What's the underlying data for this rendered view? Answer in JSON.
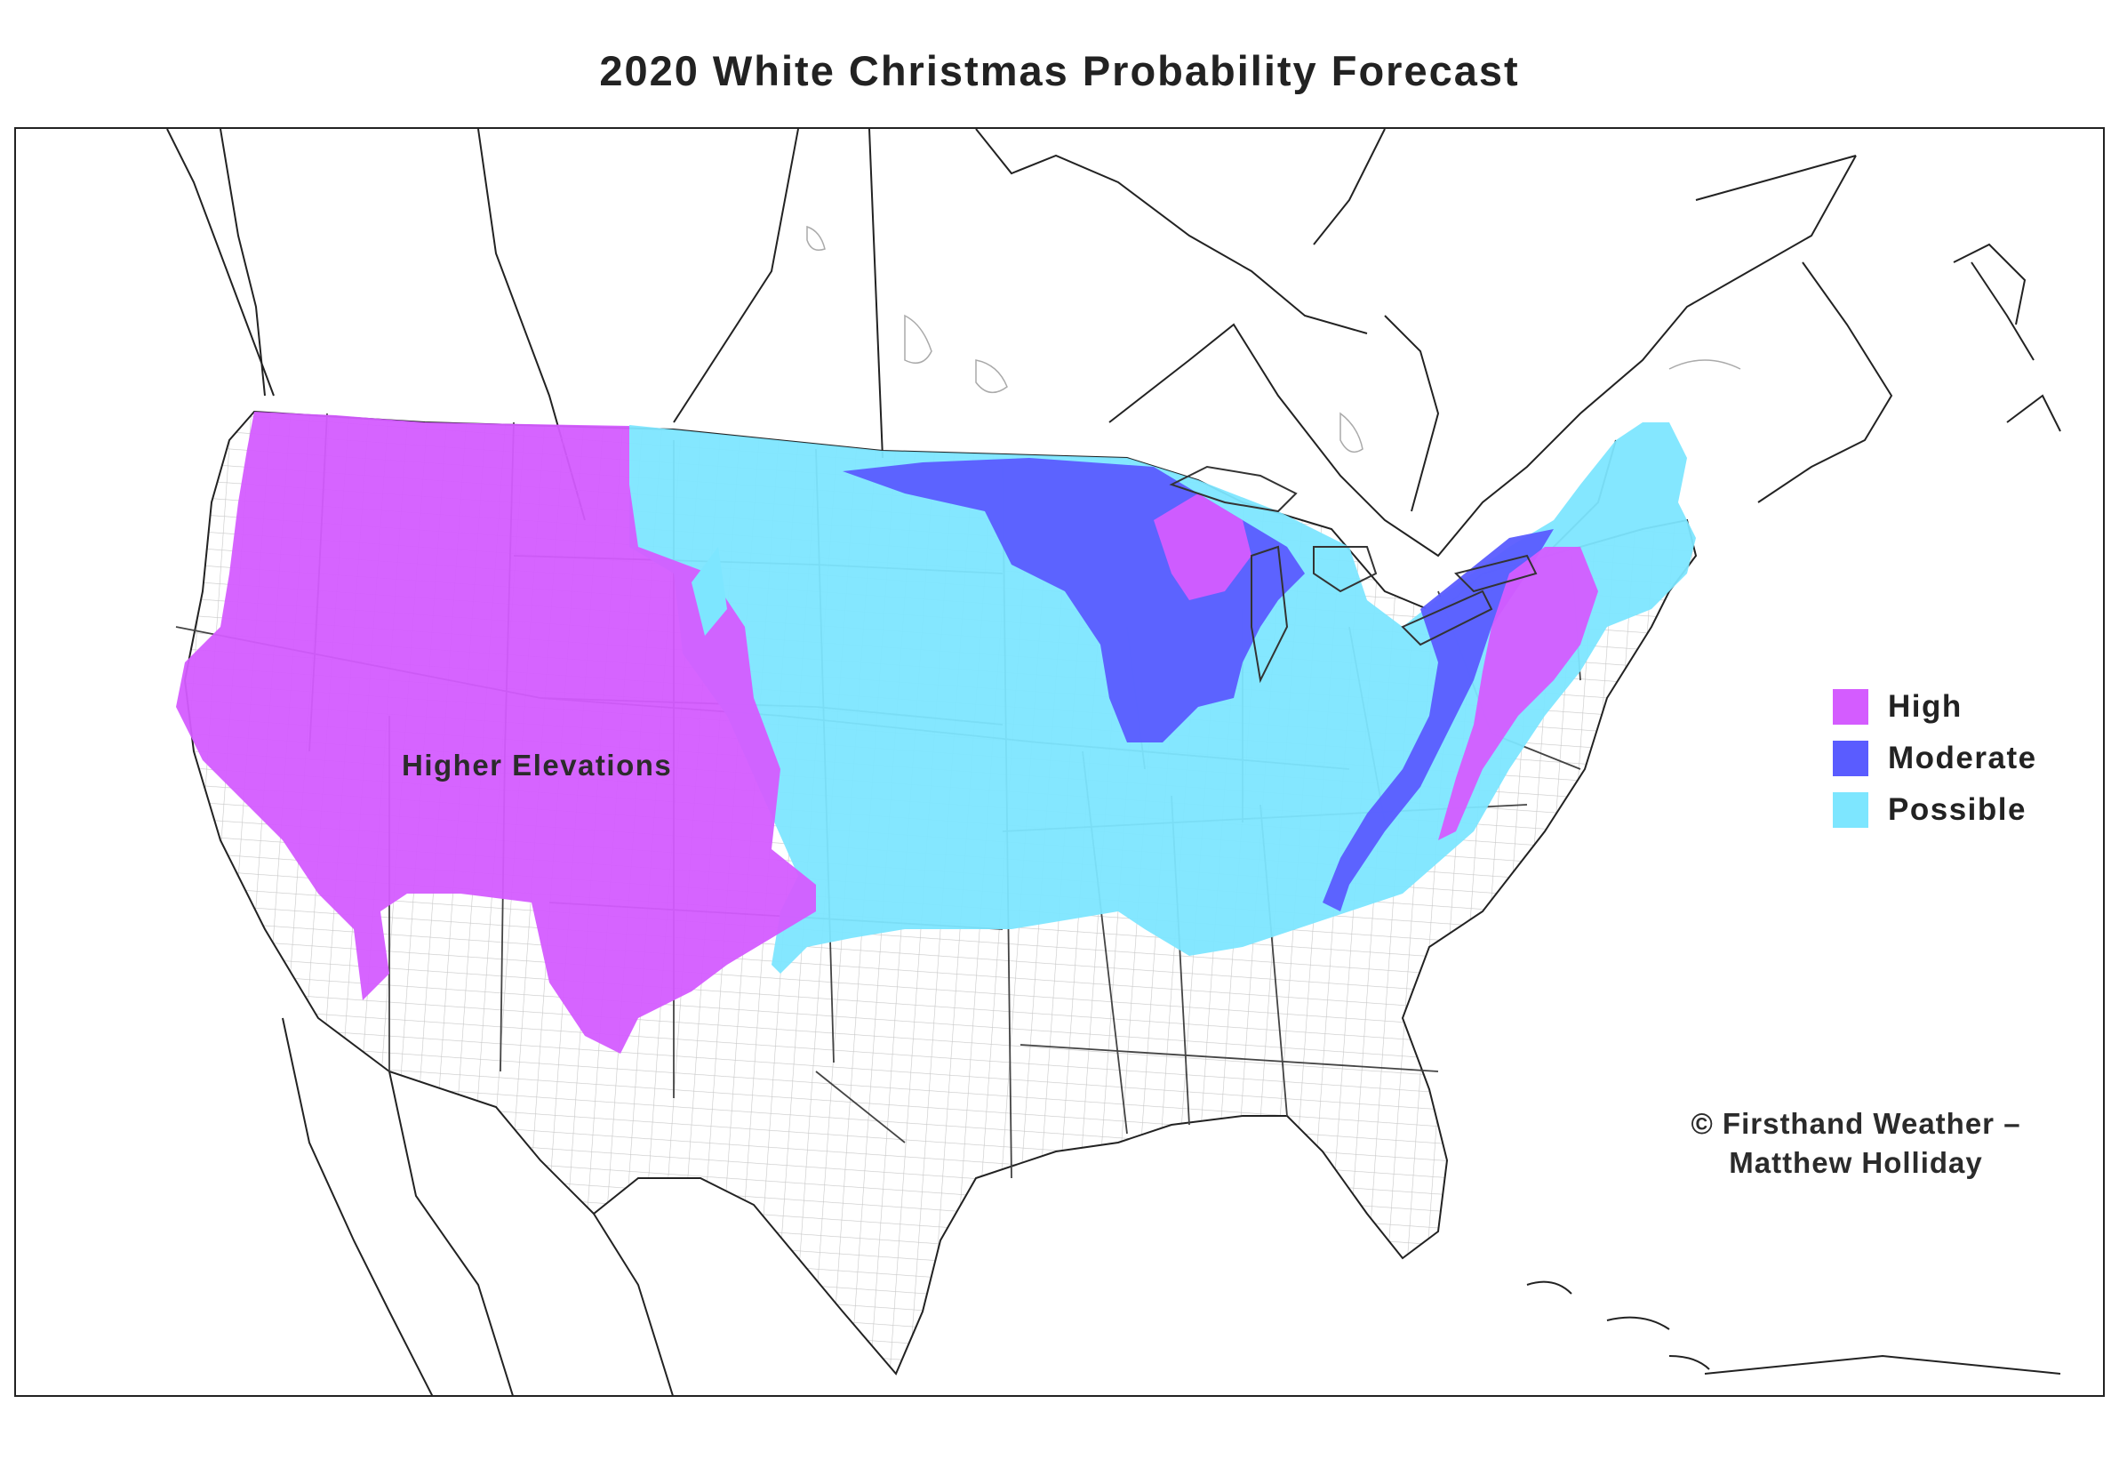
{
  "title": "2020 White Christmas Probability Forecast",
  "legend": [
    {
      "label": "High",
      "color": "#d45cff"
    },
    {
      "label": "Moderate",
      "color": "#5a5cff"
    },
    {
      "label": "Possible",
      "color": "#7de6ff"
    }
  ],
  "region_label": "Higher Elevations",
  "credit": {
    "line1": "© Firsthand Weather –",
    "line2": "Matthew Holliday"
  },
  "colors": {
    "outline": "#222222",
    "county_lines": "#bdbdbd",
    "background": "#ffffff"
  }
}
